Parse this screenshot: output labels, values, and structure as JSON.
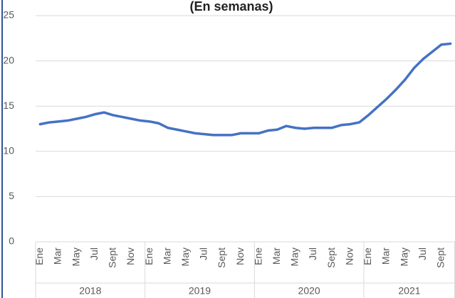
{
  "chart_data": {
    "type": "line",
    "subtitle": "(En semanas)",
    "categories": [
      "Ene",
      null,
      "Mar",
      null,
      "May",
      null,
      "Jul",
      null,
      "Sept",
      null,
      "Nov",
      null,
      "Ene",
      null,
      "Mar",
      null,
      "May",
      null,
      "Jul",
      null,
      "Sept",
      null,
      "Nov",
      null,
      "Ene",
      null,
      "Mar",
      null,
      "May",
      null,
      "Jul",
      null,
      "Sept",
      null,
      "Nov",
      null,
      "Ene",
      null,
      "Mar",
      null,
      "May",
      null,
      "Jul",
      null,
      "Sept",
      null
    ],
    "x_groups": [
      "2018",
      "2019",
      "2020",
      "2021"
    ],
    "series": [
      {
        "color": "#4472c4",
        "values": [
          13.0,
          13.2,
          13.3,
          13.4,
          13.6,
          13.8,
          14.1,
          14.3,
          14.0,
          13.8,
          13.6,
          13.4,
          13.3,
          13.1,
          12.6,
          12.4,
          12.2,
          12.0,
          11.9,
          11.8,
          11.8,
          11.8,
          12.0,
          12.0,
          12.0,
          12.3,
          12.4,
          12.8,
          12.6,
          12.5,
          12.6,
          12.6,
          12.6,
          12.9,
          13.0,
          13.2,
          14.0,
          14.9,
          15.8,
          16.8,
          17.9,
          19.2,
          20.2,
          21.0,
          21.8,
          21.9
        ]
      }
    ],
    "ylim": [
      0,
      25
    ],
    "yticks": [
      0,
      5,
      10,
      15,
      20,
      25
    ],
    "grid": true
  }
}
